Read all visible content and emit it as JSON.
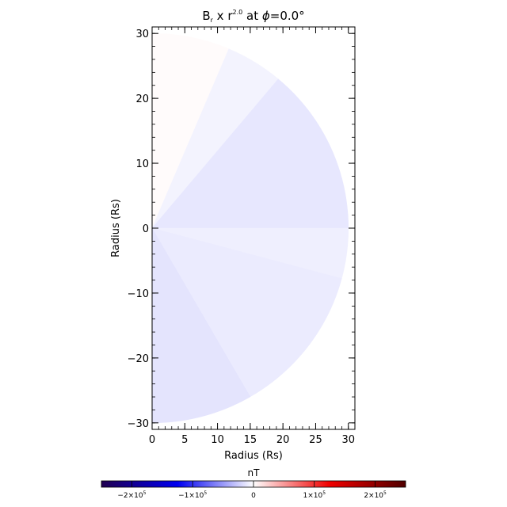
{
  "chart_data": {
    "type": "heatmap",
    "title": {
      "prefix": "B",
      "sub": "r",
      "mid": " x r",
      "exponent": "2.0",
      "suffix_pre": " at ",
      "phi": "ϕ",
      "suffix": "=0.0°"
    },
    "xlabel": "Radius (Rs)",
    "ylabel": "Radius (Rs)",
    "xlim": [
      0,
      31
    ],
    "ylim": [
      -31,
      31
    ],
    "xticks": [
      0,
      5,
      10,
      15,
      20,
      25,
      30
    ],
    "yticks": [
      30,
      20,
      10,
      0,
      -10,
      -20,
      -30
    ],
    "domain_outer_radius": 30,
    "domain_colat_range_deg": [
      23,
      150
    ],
    "colorbar": {
      "label": "nT",
      "range": [
        -250000.0,
        250000.0
      ],
      "ticks": [
        {
          "value": -200000.0,
          "base": "−2×10",
          "exp": "5"
        },
        {
          "value": -100000.0,
          "base": "−1×10",
          "exp": "5"
        },
        {
          "value": 0,
          "base": "0",
          "exp": ""
        },
        {
          "value": 100000.0,
          "base": "1×10",
          "exp": "5"
        },
        {
          "value": 200000.0,
          "base": "2×10",
          "exp": "5"
        }
      ],
      "colors": [
        "#200050",
        "#0000f0",
        "#ffffff",
        "#f00000",
        "#500000"
      ]
    },
    "sectors": [
      {
        "colat": [
          0,
          23
        ],
        "value": 2000.0
      },
      {
        "colat": [
          23,
          40
        ],
        "value": -6000.0
      },
      {
        "colat": [
          40,
          90
        ],
        "value": -12000.0
      },
      {
        "colat": [
          90,
          105
        ],
        "value": -8000.0
      },
      {
        "colat": [
          105,
          150
        ],
        "value": -10000.0
      },
      {
        "colat": [
          150,
          180
        ],
        "value": -13000.0
      }
    ]
  }
}
